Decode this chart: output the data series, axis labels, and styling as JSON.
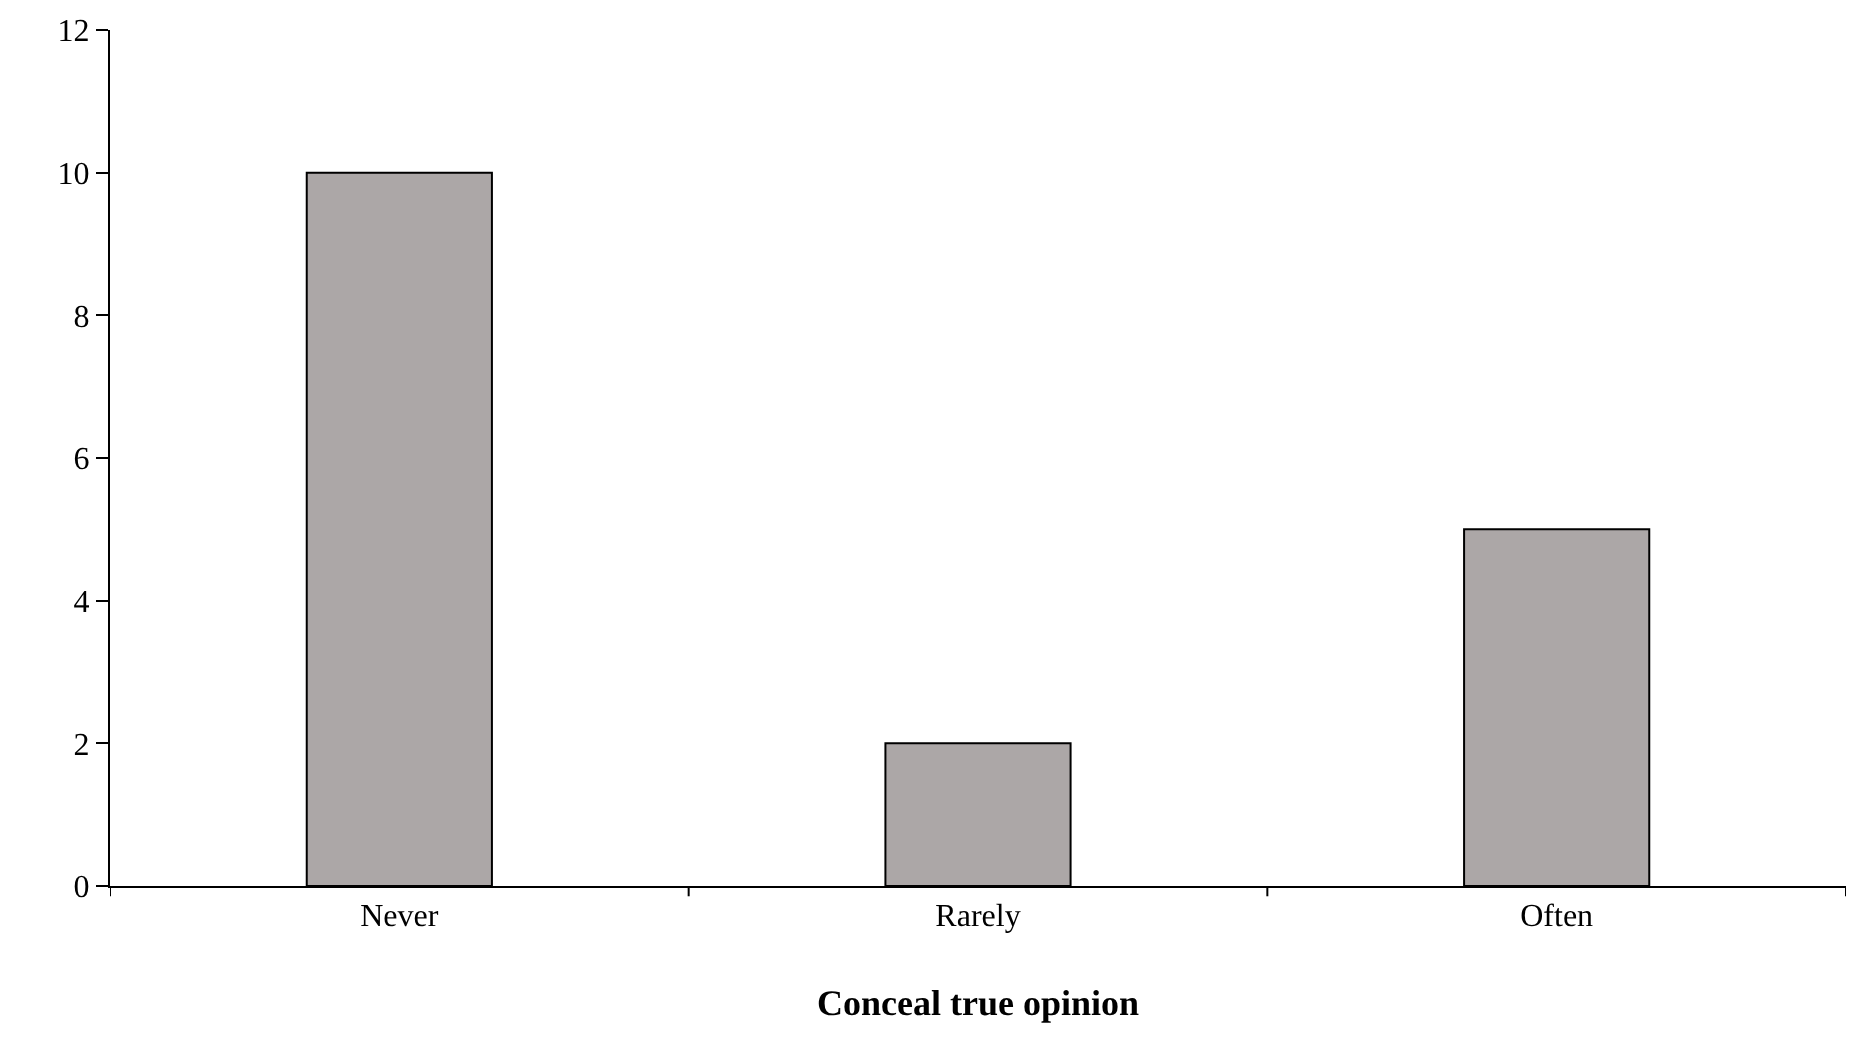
{
  "chart_data": {
    "type": "bar",
    "xlabel": "Conceal true opinion",
    "categories": [
      "Never",
      "Rarely",
      "Often"
    ],
    "values": [
      10,
      2,
      5
    ],
    "color": "#aca7a7",
    "ylim": [
      0,
      12
    ],
    "yticks": [
      0,
      2,
      4,
      6,
      8,
      10,
      12
    ]
  }
}
